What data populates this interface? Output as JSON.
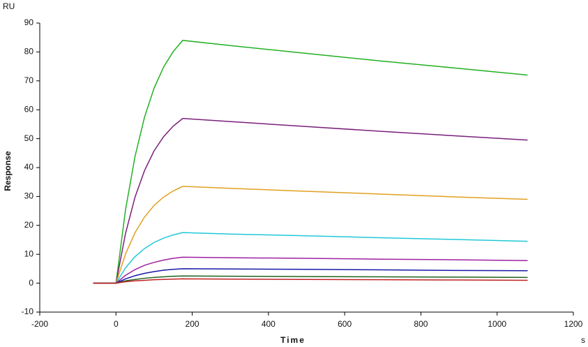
{
  "chart_data": {
    "type": "line",
    "y_unit": "RU",
    "ylabel": "Response",
    "xlabel": "Time",
    "x_unit": "s",
    "x": [
      -60,
      0,
      25,
      50,
      75,
      100,
      125,
      150,
      175,
      300,
      500,
      700,
      900,
      1080
    ],
    "xlim": [
      -200,
      1200
    ],
    "xticks": [
      -200,
      0,
      200,
      400,
      600,
      800,
      1000,
      1200
    ],
    "ylim": [
      -10,
      90
    ],
    "yticks": [
      -10,
      0,
      10,
      20,
      30,
      40,
      50,
      60,
      70,
      80,
      90
    ],
    "series": [
      {
        "color": "#22b022",
        "values": [
          0,
          0,
          25.4,
          43.9,
          57.5,
          67.5,
          74.8,
          80.1,
          84,
          82.2,
          79.5,
          76.8,
          74.3,
          72
        ]
      },
      {
        "color": "#7a1f7a",
        "values": [
          0,
          0,
          17.2,
          29.8,
          39.0,
          45.8,
          50.7,
          54.3,
          57,
          55.9,
          54.2,
          52.5,
          50.9,
          49.5
        ]
      },
      {
        "color": "#e0a020",
        "values": [
          0,
          0,
          10.1,
          17.5,
          22.9,
          26.9,
          29.8,
          31.9,
          33.5,
          32.8,
          31.8,
          30.8,
          29.8,
          29.0
        ]
      },
      {
        "color": "#20c8d8",
        "values": [
          0,
          0,
          5.3,
          9.2,
          12.0,
          14.1,
          15.6,
          16.7,
          17.5,
          17.0,
          16.4,
          15.7,
          15.1,
          14.5
        ]
      },
      {
        "color": "#a020a0",
        "values": [
          0,
          0,
          2.7,
          4.7,
          6.2,
          7.2,
          8.0,
          8.6,
          9.0,
          8.8,
          8.6,
          8.3,
          8.1,
          7.8
        ]
      },
      {
        "color": "#1818a8",
        "values": [
          0,
          0,
          1.5,
          2.6,
          3.4,
          4.0,
          4.5,
          4.8,
          5.0,
          4.9,
          4.8,
          4.6,
          4.4,
          4.3
        ]
      },
      {
        "color": "#206020",
        "values": [
          0,
          0,
          0.8,
          1.3,
          1.7,
          2.0,
          2.2,
          2.4,
          2.5,
          2.4,
          2.3,
          2.2,
          2.1,
          2.0
        ]
      },
      {
        "color": "#c02020",
        "values": [
          0,
          0,
          0.5,
          0.8,
          1.0,
          1.2,
          1.3,
          1.4,
          1.5,
          1.4,
          1.3,
          1.2,
          1.1,
          1.0
        ]
      }
    ]
  }
}
